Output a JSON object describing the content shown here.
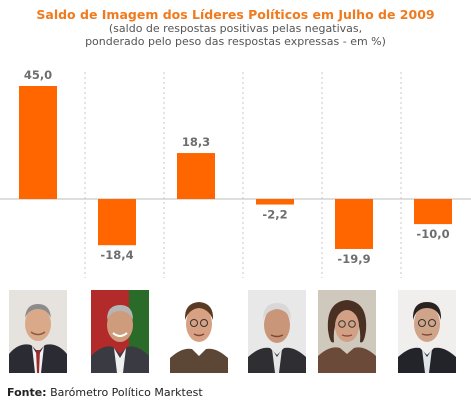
{
  "chart_data": {
    "type": "bar",
    "title": "Saldo de Imagem dos Líderes Políticos em Julho de 2009",
    "subtitle_lines": [
      "(saldo de respostas positivas pelas negativas,",
      "ponderado pelo peso das respostas expressas - em %)"
    ],
    "categories": [
      "",
      "",
      "",
      "",
      "",
      ""
    ],
    "values": [
      45.0,
      -18.4,
      18.3,
      -2.2,
      -19.9,
      -10.0
    ],
    "value_labels": [
      "45,0",
      "-18,4",
      "18,3",
      "-2,2",
      "-19,9",
      "-10,0"
    ],
    "xlabel": "",
    "ylabel": "",
    "grid": "vertical dotted separators",
    "legend": "none",
    "bar_color": "#ff6600"
  },
  "photos": [
    {
      "icon": "portrait-photo-1"
    },
    {
      "icon": "portrait-photo-2"
    },
    {
      "icon": "portrait-photo-3"
    },
    {
      "icon": "portrait-photo-4"
    },
    {
      "icon": "portrait-photo-5"
    },
    {
      "icon": "portrait-photo-6"
    }
  ],
  "footer": {
    "source_label": "Fonte:",
    "source_text": "Barómetro Político Marktest"
  }
}
